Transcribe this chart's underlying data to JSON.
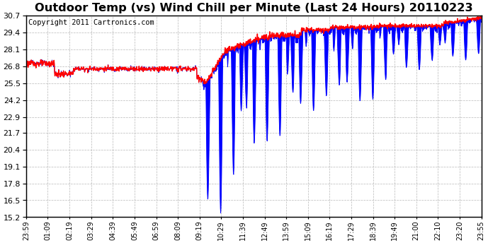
{
  "title": "Outdoor Temp (vs) Wind Chill per Minute (Last 24 Hours) 20110223",
  "copyright": "Copyright 2011 Cartronics.com",
  "background_color": "#ffffff",
  "plot_bg_color": "#ffffff",
  "grid_color": "#aaaaaa",
  "yticks": [
    15.2,
    16.5,
    17.8,
    19.1,
    20.4,
    21.7,
    22.9,
    24.2,
    25.5,
    26.8,
    28.1,
    29.4,
    30.7
  ],
  "ylim": [
    15.2,
    30.7
  ],
  "xtick_labels": [
    "23:59",
    "01:09",
    "02:19",
    "03:29",
    "04:39",
    "05:49",
    "06:59",
    "08:09",
    "09:19",
    "10:29",
    "11:39",
    "12:49",
    "13:59",
    "15:09",
    "16:19",
    "17:29",
    "18:39",
    "19:49",
    "21:00",
    "22:10",
    "23:20",
    "23:55"
  ],
  "num_points": 1440,
  "red_line_color": "#ff0000",
  "blue_fill_color": "#0000ff",
  "title_fontsize": 11,
  "copyright_fontsize": 7
}
